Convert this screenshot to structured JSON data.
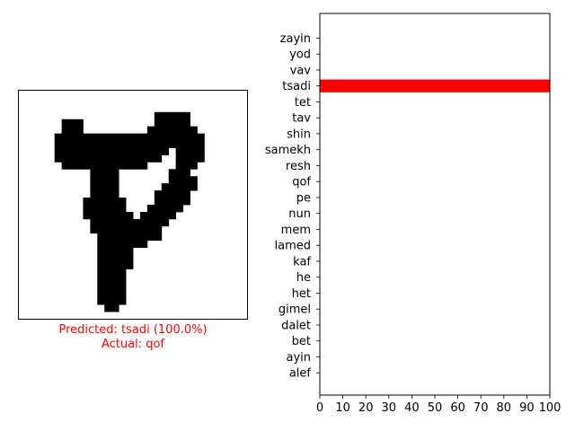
{
  "prediction_text": "Predicted: tsadi (100.0%)",
  "actual_text": "Actual: qof",
  "colors": {
    "prediction_bar": "#ff0000",
    "caption": "#ff0000",
    "glyph": "#000000"
  },
  "glyph_image": {
    "rows": [
      "................................",
      "................................",
      "................................",
      "...................xxxxx........",
      "......xxx..........xxxxx........",
      "......xxx.........xxxxxxx.......",
      ".....xxxxxxxxxxxxxxxxxxxxx......",
      ".....xxxxxxxxxxxxxxxxxxxxx......",
      ".....xxxxxxxxxxxxxxxx.xxxx......",
      ".....xxxxxxxxxxxxxxx..xxxx......",
      "......xxxxxxxxxxxx....xxx.......",
      "..........xxxx.......xxx........",
      "..........xxxx.......xxxx.......",
      "..........xxxx......xxxxx.......",
      "..........xxxx.....xxxxx........",
      ".........xxxxxx....xxxxx........",
      ".........xxxxxx...xxxxx.........",
      ".........xxxxxxx.xxxxx..........",
      "..........xxxxxxxxxxx...........",
      "..........xxxxxxxxxx............",
      "...........xxxxxxxxx............",
      "...........xxxxxxx..............",
      "...........xxxxx................",
      "...........xxxxx................",
      "...........xxxxx................",
      "...........xxxx.................",
      "...........xxxx.................",
      "...........xxxx.................",
      "...........xxxx.................",
      "...........xxxx.................",
      "............xx..................",
      "................................"
    ]
  },
  "chart_data": {
    "type": "bar",
    "orientation": "horizontal",
    "categories": [
      "alef",
      "ayin",
      "bet",
      "dalet",
      "gimel",
      "het",
      "he",
      "kaf",
      "lamed",
      "mem",
      "nun",
      "pe",
      "qof",
      "resh",
      "samekh",
      "shin",
      "tav",
      "tet",
      "tsadi",
      "vav",
      "yod",
      "zayin"
    ],
    "values": [
      0,
      0,
      0,
      0,
      0,
      0,
      0,
      0,
      0,
      0,
      0,
      0,
      0,
      0,
      0,
      0,
      0,
      0,
      100,
      0,
      0,
      0
    ],
    "xlim": [
      0,
      100
    ],
    "xticks": [
      "0",
      "10",
      "20",
      "30",
      "40",
      "50",
      "60",
      "70",
      "80",
      "90",
      "100"
    ],
    "grid": false
  }
}
